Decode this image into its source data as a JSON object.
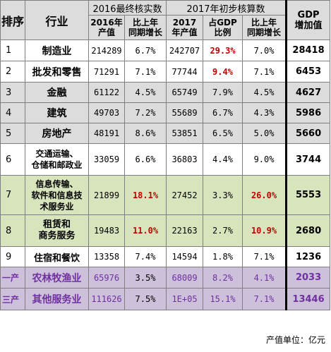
{
  "header": {
    "seq": "排序",
    "industry": "行业",
    "group_2016": "2016最终核实数",
    "group_2017": "2017年初步核算数",
    "col_2016_value": [
      "2016年",
      "产值"
    ],
    "col_2016_growth": [
      "比上年",
      "同期增长"
    ],
    "col_2017_value": [
      "2017",
      "年产值"
    ],
    "col_2017_share": [
      "占GDP",
      "比例"
    ],
    "col_2017_growth": [
      "比上年",
      "同期增长"
    ],
    "col_gdp_incr": [
      "GDP",
      "增加值"
    ]
  },
  "rows": [
    {
      "seq": "1",
      "name": [
        "制造业"
      ],
      "v2016": "214289",
      "g2016": "6.7%",
      "v2017": "242707",
      "share": "29.3%",
      "g2017": "7.0%",
      "incr": "28418"
    },
    {
      "seq": "2",
      "name": [
        "批发和零售"
      ],
      "v2016": "71291",
      "g2016": "7.1%",
      "v2017": "77744",
      "share": "9.4%",
      "g2017": "7.1%",
      "incr": "6453"
    },
    {
      "seq": "3",
      "name": [
        "金融"
      ],
      "v2016": "61122",
      "g2016": "4.5%",
      "v2017": "65749",
      "share": "7.9%",
      "g2017": "4.5%",
      "incr": "4627"
    },
    {
      "seq": "4",
      "name": [
        "建筑"
      ],
      "v2016": "49703",
      "g2016": "7.2%",
      "v2017": "55689",
      "share": "6.7%",
      "g2017": "4.3%",
      "incr": "5986"
    },
    {
      "seq": "5",
      "name": [
        "房地产"
      ],
      "v2016": "48191",
      "g2016": "8.6%",
      "v2017": "53851",
      "share": "6.5%",
      "g2017": "5.0%",
      "incr": "5660"
    },
    {
      "seq": "6",
      "name": [
        "交通运输、",
        "仓储和邮政业"
      ],
      "v2016": "33059",
      "g2016": "6.6%",
      "v2017": "36803",
      "share": "4.4%",
      "g2017": "9.0%",
      "incr": "3744"
    },
    {
      "seq": "7",
      "name": [
        "信息传输、",
        "软件和信息技",
        "术服务业"
      ],
      "v2016": "21899",
      "g2016": "18.1%",
      "v2017": "27452",
      "share": "3.3%",
      "g2017": "26.0%",
      "incr": "5553"
    },
    {
      "seq": "8",
      "name": [
        "租赁和",
        "商务服务"
      ],
      "v2016": "19483",
      "g2016": "11.0%",
      "v2017": "22163",
      "share": "2.7%",
      "g2017": "10.9%",
      "incr": "2680"
    },
    {
      "seq": "9",
      "name": [
        "住宿和餐饮"
      ],
      "v2016": "13358",
      "g2016": "7.4%",
      "v2017": "14594",
      "share": "1.8%",
      "g2017": "7.1%",
      "incr": "1236"
    },
    {
      "seq": "一产",
      "name": [
        "农林牧渔业"
      ],
      "v2016": "65976",
      "g2016": "3.5%",
      "v2017": "68009",
      "share": "8.2%",
      "g2017": "4.1%",
      "incr": "2033"
    },
    {
      "seq": "三产",
      "name": [
        "其他服务业"
      ],
      "v2016": "111626",
      "g2016": "7.5%",
      "v2017": "1E+05",
      "share": "15.1%",
      "g2017": "7.1%",
      "incr": "13446"
    }
  ],
  "footer": {
    "unit_note": "产值单位：亿元"
  },
  "colors": {
    "header_gray": "#dcdcdc",
    "row_gray": "#dcdcdc",
    "row_green": "#d8e4bc",
    "row_lavender": "#ccc0da",
    "highlight_red": "#c00000",
    "purple_text": "#7030a0"
  }
}
